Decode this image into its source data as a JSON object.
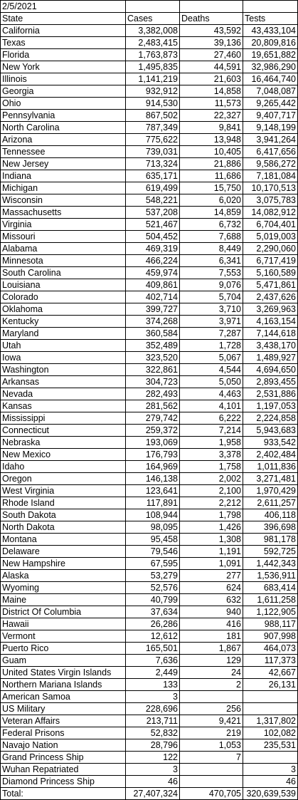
{
  "date": "2/5/2021",
  "headers": [
    "State",
    "Cases",
    "Deaths",
    "Tests"
  ],
  "rows": [
    [
      "California",
      "3,382,008",
      "43,592",
      "43,433,104"
    ],
    [
      "Texas",
      "2,483,415",
      "39,136",
      "20,809,816"
    ],
    [
      "Florida",
      "1,763,873",
      "27,460",
      "19,651,882"
    ],
    [
      "New York",
      "1,495,835",
      "44,591",
      "32,986,290"
    ],
    [
      "Illinois",
      "1,141,219",
      "21,603",
      "16,464,740"
    ],
    [
      "Georgia",
      "932,912",
      "14,858",
      "7,048,087"
    ],
    [
      "Ohio",
      "914,530",
      "11,573",
      "9,265,442"
    ],
    [
      "Pennsylvania",
      "867,502",
      "22,327",
      "9,407,717"
    ],
    [
      "North Carolina",
      "787,349",
      "9,841",
      "9,148,199"
    ],
    [
      "Arizona",
      "775,622",
      "13,948",
      "3,941,264"
    ],
    [
      "Tennessee",
      "739,031",
      "10,405",
      "6,417,656"
    ],
    [
      "New Jersey",
      "713,324",
      "21,886",
      "9,586,272"
    ],
    [
      "Indiana",
      "635,171",
      "11,686",
      "7,181,084"
    ],
    [
      "Michigan",
      "619,499",
      "15,750",
      "10,170,513"
    ],
    [
      "Wisconsin",
      "548,221",
      "6,020",
      "3,075,783"
    ],
    [
      "Massachusetts",
      "537,208",
      "14,859",
      "14,082,912"
    ],
    [
      "Virginia",
      "521,467",
      "6,732",
      "6,704,401"
    ],
    [
      "Missouri",
      "504,452",
      "7,688",
      "5,019,003"
    ],
    [
      "Alabama",
      "469,319",
      "8,449",
      "2,290,060"
    ],
    [
      "Minnesota",
      "466,224",
      "6,341",
      "6,717,419"
    ],
    [
      "South Carolina",
      "459,974",
      "7,553",
      "5,160,589"
    ],
    [
      "Louisiana",
      "409,861",
      "9,076",
      "5,471,861"
    ],
    [
      "Colorado",
      "402,714",
      "5,704",
      "2,437,626"
    ],
    [
      "Oklahoma",
      "399,727",
      "3,710",
      "3,269,963"
    ],
    [
      "Kentucky",
      "374,268",
      "3,971",
      "4,163,154"
    ],
    [
      "Maryland",
      "360,584",
      "7,287",
      "7,144,618"
    ],
    [
      "Utah",
      "352,489",
      "1,728",
      "3,438,170"
    ],
    [
      "Iowa",
      "323,520",
      "5,067",
      "1,489,927"
    ],
    [
      "Washington",
      "322,861",
      "4,544",
      "4,694,650"
    ],
    [
      "Arkansas",
      "304,723",
      "5,050",
      "2,893,455"
    ],
    [
      "Nevada",
      "282,493",
      "4,463",
      "2,531,886"
    ],
    [
      "Kansas",
      "281,562",
      "4,101",
      "1,197,053"
    ],
    [
      "Mississippi",
      "279,742",
      "6,222",
      "2,224,858"
    ],
    [
      "Connecticut",
      "259,372",
      "7,214",
      "5,943,683"
    ],
    [
      "Nebraska",
      "193,069",
      "1,958",
      "933,542"
    ],
    [
      "New Mexico",
      "176,793",
      "3,378",
      "2,402,484"
    ],
    [
      "Idaho",
      "164,969",
      "1,758",
      "1,011,836"
    ],
    [
      "Oregon",
      "146,138",
      "2,002",
      "3,271,481"
    ],
    [
      "West Virginia",
      "123,641",
      "2,100",
      "1,970,429"
    ],
    [
      "Rhode Island",
      "117,891",
      "2,212",
      "2,611,257"
    ],
    [
      "South Dakota",
      "108,944",
      "1,798",
      "406,118"
    ],
    [
      "North Dakota",
      "98,095",
      "1,426",
      "396,698"
    ],
    [
      "Montana",
      "95,458",
      "1,308",
      "981,178"
    ],
    [
      "Delaware",
      "79,546",
      "1,191",
      "592,725"
    ],
    [
      "New Hampshire",
      "67,595",
      "1,091",
      "1,442,343"
    ],
    [
      "Alaska",
      "53,279",
      "277",
      "1,536,911"
    ],
    [
      "Wyoming",
      "52,576",
      "624",
      "683,414"
    ],
    [
      "Maine",
      "40,799",
      "632",
      "1,611,258"
    ],
    [
      "District Of Columbia",
      "37,634",
      "940",
      "1,122,905"
    ],
    [
      "Hawaii",
      "26,286",
      "416",
      "988,117"
    ],
    [
      "Vermont",
      "12,612",
      "181",
      "907,998"
    ],
    [
      "Puerto Rico",
      "165,501",
      "1,867",
      "464,073"
    ],
    [
      "Guam",
      "7,636",
      "129",
      "117,373"
    ],
    [
      "United States Virgin Islands",
      "2,449",
      "24",
      "42,667"
    ],
    [
      "Northern Mariana Islands",
      "133",
      "2",
      "26,131"
    ],
    [
      "American Samoa",
      "3",
      "",
      ""
    ],
    [
      "US Military",
      "228,696",
      "256",
      ""
    ],
    [
      "Veteran Affairs",
      "213,711",
      "9,421",
      "1,317,802"
    ],
    [
      "Federal Prisons",
      "52,832",
      "219",
      "102,082"
    ],
    [
      "Navajo Nation",
      "28,796",
      "1,053",
      "235,531"
    ],
    [
      "Grand Princess Ship",
      "122",
      "7",
      ""
    ],
    [
      "Wuhan Repatriated",
      "3",
      "",
      "3"
    ],
    [
      "Diamond Princess Ship",
      "46",
      "",
      "46"
    ]
  ],
  "total": [
    "Total:",
    "27,407,324",
    "470,705",
    "320,639,539"
  ]
}
